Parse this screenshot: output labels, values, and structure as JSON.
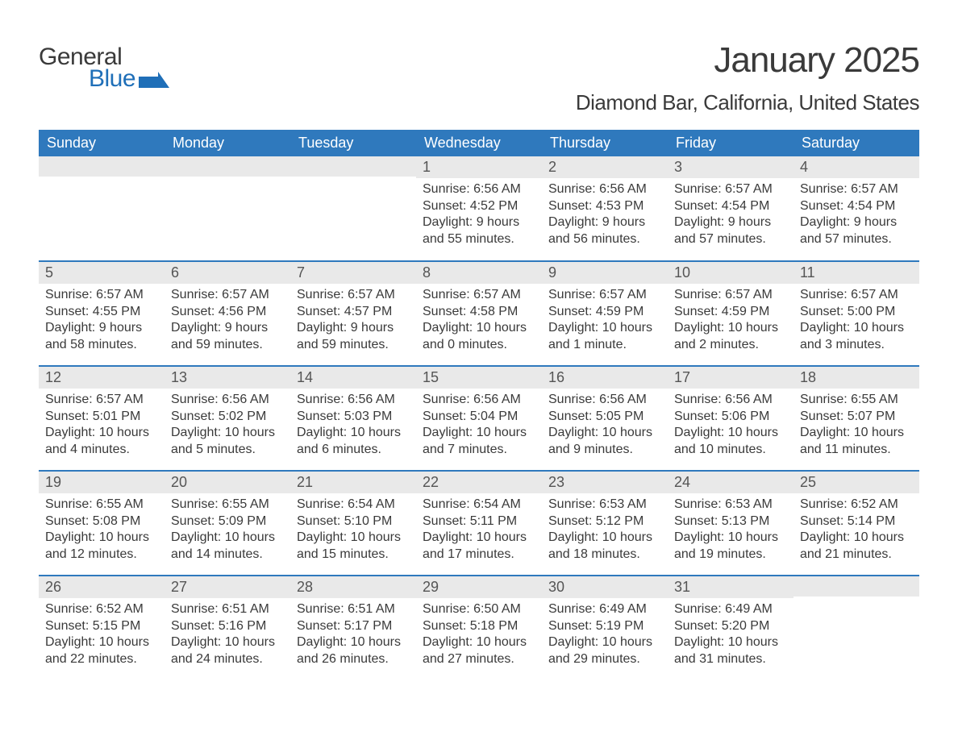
{
  "logo": {
    "line1": "General",
    "line2": "Blue"
  },
  "title": "January 2025",
  "location": "Diamond Bar, California, United States",
  "colors": {
    "header_bg": "#2f79bd",
    "header_text": "#ffffff",
    "daynum_bg": "#e9e9e9",
    "border": "#2f79bd",
    "logo_blue": "#1f6fb8",
    "text": "#3a3a3a"
  },
  "weekdays": [
    "Sunday",
    "Monday",
    "Tuesday",
    "Wednesday",
    "Thursday",
    "Friday",
    "Saturday"
  ],
  "cells": [
    [
      {
        "day": "",
        "sunrise": "",
        "sunset": "",
        "daylight": ""
      },
      {
        "day": "",
        "sunrise": "",
        "sunset": "",
        "daylight": ""
      },
      {
        "day": "",
        "sunrise": "",
        "sunset": "",
        "daylight": ""
      },
      {
        "day": "1",
        "sunrise": "Sunrise: 6:56 AM",
        "sunset": "Sunset: 4:52 PM",
        "daylight": "Daylight: 9 hours and 55 minutes."
      },
      {
        "day": "2",
        "sunrise": "Sunrise: 6:56 AM",
        "sunset": "Sunset: 4:53 PM",
        "daylight": "Daylight: 9 hours and 56 minutes."
      },
      {
        "day": "3",
        "sunrise": "Sunrise: 6:57 AM",
        "sunset": "Sunset: 4:54 PM",
        "daylight": "Daylight: 9 hours and 57 minutes."
      },
      {
        "day": "4",
        "sunrise": "Sunrise: 6:57 AM",
        "sunset": "Sunset: 4:54 PM",
        "daylight": "Daylight: 9 hours and 57 minutes."
      }
    ],
    [
      {
        "day": "5",
        "sunrise": "Sunrise: 6:57 AM",
        "sunset": "Sunset: 4:55 PM",
        "daylight": "Daylight: 9 hours and 58 minutes."
      },
      {
        "day": "6",
        "sunrise": "Sunrise: 6:57 AM",
        "sunset": "Sunset: 4:56 PM",
        "daylight": "Daylight: 9 hours and 59 minutes."
      },
      {
        "day": "7",
        "sunrise": "Sunrise: 6:57 AM",
        "sunset": "Sunset: 4:57 PM",
        "daylight": "Daylight: 9 hours and 59 minutes."
      },
      {
        "day": "8",
        "sunrise": "Sunrise: 6:57 AM",
        "sunset": "Sunset: 4:58 PM",
        "daylight": "Daylight: 10 hours and 0 minutes."
      },
      {
        "day": "9",
        "sunrise": "Sunrise: 6:57 AM",
        "sunset": "Sunset: 4:59 PM",
        "daylight": "Daylight: 10 hours and 1 minute."
      },
      {
        "day": "10",
        "sunrise": "Sunrise: 6:57 AM",
        "sunset": "Sunset: 4:59 PM",
        "daylight": "Daylight: 10 hours and 2 minutes."
      },
      {
        "day": "11",
        "sunrise": "Sunrise: 6:57 AM",
        "sunset": "Sunset: 5:00 PM",
        "daylight": "Daylight: 10 hours and 3 minutes."
      }
    ],
    [
      {
        "day": "12",
        "sunrise": "Sunrise: 6:57 AM",
        "sunset": "Sunset: 5:01 PM",
        "daylight": "Daylight: 10 hours and 4 minutes."
      },
      {
        "day": "13",
        "sunrise": "Sunrise: 6:56 AM",
        "sunset": "Sunset: 5:02 PM",
        "daylight": "Daylight: 10 hours and 5 minutes."
      },
      {
        "day": "14",
        "sunrise": "Sunrise: 6:56 AM",
        "sunset": "Sunset: 5:03 PM",
        "daylight": "Daylight: 10 hours and 6 minutes."
      },
      {
        "day": "15",
        "sunrise": "Sunrise: 6:56 AM",
        "sunset": "Sunset: 5:04 PM",
        "daylight": "Daylight: 10 hours and 7 minutes."
      },
      {
        "day": "16",
        "sunrise": "Sunrise: 6:56 AM",
        "sunset": "Sunset: 5:05 PM",
        "daylight": "Daylight: 10 hours and 9 minutes."
      },
      {
        "day": "17",
        "sunrise": "Sunrise: 6:56 AM",
        "sunset": "Sunset: 5:06 PM",
        "daylight": "Daylight: 10 hours and 10 minutes."
      },
      {
        "day": "18",
        "sunrise": "Sunrise: 6:55 AM",
        "sunset": "Sunset: 5:07 PM",
        "daylight": "Daylight: 10 hours and 11 minutes."
      }
    ],
    [
      {
        "day": "19",
        "sunrise": "Sunrise: 6:55 AM",
        "sunset": "Sunset: 5:08 PM",
        "daylight": "Daylight: 10 hours and 12 minutes."
      },
      {
        "day": "20",
        "sunrise": "Sunrise: 6:55 AM",
        "sunset": "Sunset: 5:09 PM",
        "daylight": "Daylight: 10 hours and 14 minutes."
      },
      {
        "day": "21",
        "sunrise": "Sunrise: 6:54 AM",
        "sunset": "Sunset: 5:10 PM",
        "daylight": "Daylight: 10 hours and 15 minutes."
      },
      {
        "day": "22",
        "sunrise": "Sunrise: 6:54 AM",
        "sunset": "Sunset: 5:11 PM",
        "daylight": "Daylight: 10 hours and 17 minutes."
      },
      {
        "day": "23",
        "sunrise": "Sunrise: 6:53 AM",
        "sunset": "Sunset: 5:12 PM",
        "daylight": "Daylight: 10 hours and 18 minutes."
      },
      {
        "day": "24",
        "sunrise": "Sunrise: 6:53 AM",
        "sunset": "Sunset: 5:13 PM",
        "daylight": "Daylight: 10 hours and 19 minutes."
      },
      {
        "day": "25",
        "sunrise": "Sunrise: 6:52 AM",
        "sunset": "Sunset: 5:14 PM",
        "daylight": "Daylight: 10 hours and 21 minutes."
      }
    ],
    [
      {
        "day": "26",
        "sunrise": "Sunrise: 6:52 AM",
        "sunset": "Sunset: 5:15 PM",
        "daylight": "Daylight: 10 hours and 22 minutes."
      },
      {
        "day": "27",
        "sunrise": "Sunrise: 6:51 AM",
        "sunset": "Sunset: 5:16 PM",
        "daylight": "Daylight: 10 hours and 24 minutes."
      },
      {
        "day": "28",
        "sunrise": "Sunrise: 6:51 AM",
        "sunset": "Sunset: 5:17 PM",
        "daylight": "Daylight: 10 hours and 26 minutes."
      },
      {
        "day": "29",
        "sunrise": "Sunrise: 6:50 AM",
        "sunset": "Sunset: 5:18 PM",
        "daylight": "Daylight: 10 hours and 27 minutes."
      },
      {
        "day": "30",
        "sunrise": "Sunrise: 6:49 AM",
        "sunset": "Sunset: 5:19 PM",
        "daylight": "Daylight: 10 hours and 29 minutes."
      },
      {
        "day": "31",
        "sunrise": "Sunrise: 6:49 AM",
        "sunset": "Sunset: 5:20 PM",
        "daylight": "Daylight: 10 hours and 31 minutes."
      },
      {
        "day": "",
        "sunrise": "",
        "sunset": "",
        "daylight": ""
      }
    ]
  ]
}
